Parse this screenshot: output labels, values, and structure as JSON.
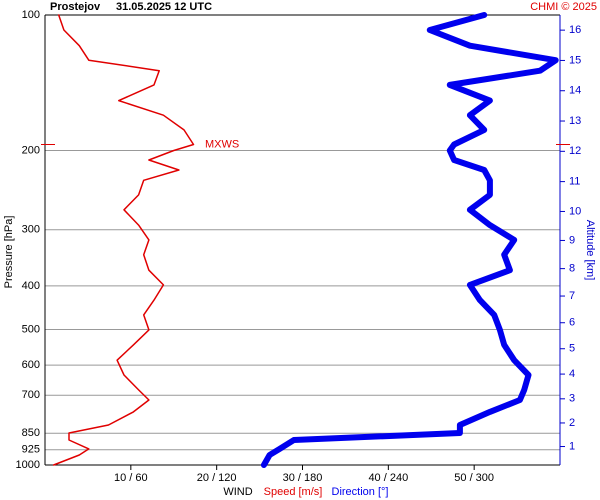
{
  "chart_data": {
    "type": "profile",
    "title": "Prostejov",
    "subtitle": "31.05.2025 12 UTC",
    "credit": "CHMI © 2025",
    "ylabel": "Pressure [hPa]",
    "y2label": "Altitude [km]",
    "xlabel": "WIND",
    "log_y": true,
    "grid": true,
    "ylim": [
      1000,
      100
    ],
    "yticks": [
      100,
      200,
      300,
      400,
      500,
      600,
      700,
      850,
      925,
      1000
    ],
    "y2lim": [
      0.2,
      16.5
    ],
    "y2ticks": [
      1,
      2,
      3,
      4,
      5,
      6,
      7,
      8,
      9,
      10,
      11,
      12,
      13,
      14,
      15,
      16
    ],
    "xlim": [
      0,
      60
    ],
    "x2lim": [
      0,
      360
    ],
    "xticks": [
      {
        "value": 10,
        "label": "10 / 60"
      },
      {
        "value": 20,
        "label": "20 / 120"
      },
      {
        "value": 30,
        "label": "30 / 180"
      },
      {
        "value": 40,
        "label": "40 / 240"
      },
      {
        "value": 50,
        "label": "50 / 300"
      }
    ],
    "y": [
      1000,
      950,
      921,
      880,
      849,
      815,
      762,
      717,
      681,
      631,
      585,
      541,
      501,
      464,
      430,
      398,
      369,
      341,
      316,
      293,
      271,
      251,
      233,
      221,
      210,
      200,
      194,
      180,
      167,
      155,
      143,
      133,
      126,
      117,
      108,
      100
    ],
    "series": [
      {
        "name": "Speed [m/s]",
        "color": "#e00000",
        "axis": "x",
        "values": [
          1.0,
          4.0,
          5.1,
          2.8,
          2.8,
          7.4,
          10.3,
          12.1,
          10.9,
          9.2,
          8.4,
          10.3,
          12.1,
          11.5,
          12.7,
          13.8,
          12.1,
          11.5,
          12.1,
          10.9,
          9.2,
          10.9,
          11.5,
          15.6,
          12.1,
          15.0,
          17.3,
          16.2,
          13.8,
          8.6,
          12.7,
          13.3,
          5.1,
          4.0,
          2.2,
          1.6
        ]
      },
      {
        "name": "Direction [°]",
        "color": "#0000ee",
        "axis": "x2",
        "values": [
          153,
          157,
          164,
          174,
          290,
          290,
          311,
          332,
          335,
          338,
          328,
          321,
          318,
          314,
          304,
          297,
          325,
          321,
          328,
          311,
          297,
          311,
          311,
          307,
          286,
          283,
          286,
          307,
          297,
          311,
          283,
          346,
          357,
          297,
          269,
          307
        ]
      }
    ],
    "annotations": [
      {
        "text": "MXWS",
        "y": 194
      }
    ]
  }
}
